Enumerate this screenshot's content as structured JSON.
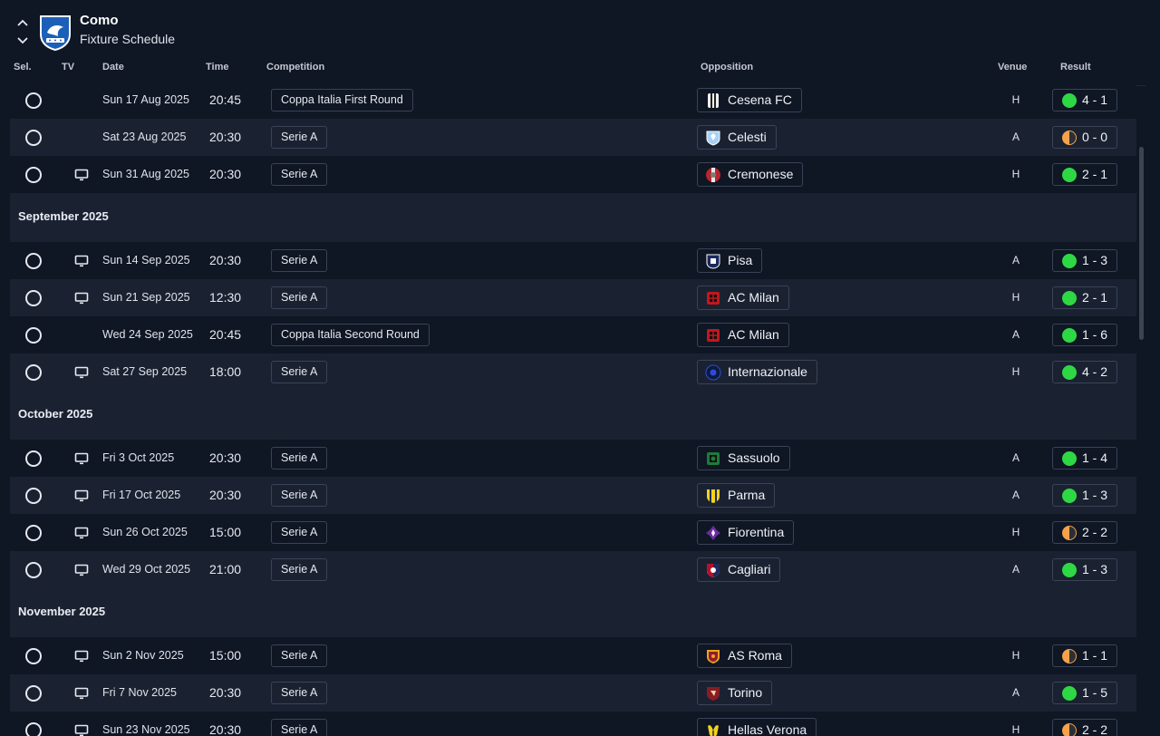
{
  "header": {
    "team": "Como",
    "subtitle": "Fixture Schedule"
  },
  "columns": {
    "sel": "Sel.",
    "tv": "TV",
    "date": "Date",
    "time": "Time",
    "competition": "Competition",
    "opposition": "Opposition",
    "venue": "Venue",
    "result": "Result"
  },
  "colors": {
    "win": "#2ed844",
    "draw": "#f5a24a",
    "background": "#0f1624",
    "row_alt": "#1a2232"
  },
  "fixtures": [
    {
      "kind": "row",
      "tv": false,
      "date": "Sun 17 Aug 2025",
      "time": "20:45",
      "competition": "Coppa Italia First Round",
      "opponent": "Cesena FC",
      "venue": "H",
      "result": "4 - 1",
      "outcome": "win",
      "crest": "cesena"
    },
    {
      "kind": "row",
      "tv": false,
      "date": "Sat 23 Aug 2025",
      "time": "20:30",
      "competition": "Serie A",
      "opponent": "Celesti",
      "venue": "A",
      "result": "0 - 0",
      "outcome": "draw",
      "crest": "celesti"
    },
    {
      "kind": "row",
      "tv": true,
      "date": "Sun 31 Aug 2025",
      "time": "20:30",
      "competition": "Serie A",
      "opponent": "Cremonese",
      "venue": "H",
      "result": "2 - 1",
      "outcome": "win",
      "crest": "cremonese"
    },
    {
      "kind": "month",
      "label": "September 2025"
    },
    {
      "kind": "row",
      "tv": true,
      "date": "Sun 14 Sep 2025",
      "time": "20:30",
      "competition": "Serie A",
      "opponent": "Pisa",
      "venue": "A",
      "result": "1 - 3",
      "outcome": "win",
      "crest": "pisa"
    },
    {
      "kind": "row",
      "tv": true,
      "date": "Sun 21 Sep 2025",
      "time": "12:30",
      "competition": "Serie A",
      "opponent": "AC Milan",
      "venue": "H",
      "result": "2 - 1",
      "outcome": "win",
      "crest": "milan"
    },
    {
      "kind": "row",
      "tv": false,
      "date": "Wed 24 Sep 2025",
      "time": "20:45",
      "competition": "Coppa Italia Second Round",
      "opponent": "AC Milan",
      "venue": "A",
      "result": "1 - 6",
      "outcome": "win",
      "crest": "milan"
    },
    {
      "kind": "row",
      "tv": true,
      "date": "Sat 27 Sep 2025",
      "time": "18:00",
      "competition": "Serie A",
      "opponent": "Internazionale",
      "venue": "H",
      "result": "4 - 2",
      "outcome": "win",
      "crest": "inter"
    },
    {
      "kind": "month",
      "label": "October 2025"
    },
    {
      "kind": "row",
      "tv": true,
      "date": "Fri 3 Oct 2025",
      "time": "20:30",
      "competition": "Serie A",
      "opponent": "Sassuolo",
      "venue": "A",
      "result": "1 - 4",
      "outcome": "win",
      "crest": "sassuolo"
    },
    {
      "kind": "row",
      "tv": true,
      "date": "Fri 17 Oct 2025",
      "time": "20:30",
      "competition": "Serie A",
      "opponent": "Parma",
      "venue": "A",
      "result": "1 - 3",
      "outcome": "win",
      "crest": "parma"
    },
    {
      "kind": "row",
      "tv": true,
      "date": "Sun 26 Oct 2025",
      "time": "15:00",
      "competition": "Serie A",
      "opponent": "Fiorentina",
      "venue": "H",
      "result": "2 - 2",
      "outcome": "draw",
      "crest": "fiorentina"
    },
    {
      "kind": "row",
      "tv": true,
      "date": "Wed 29 Oct 2025",
      "time": "21:00",
      "competition": "Serie A",
      "opponent": "Cagliari",
      "venue": "A",
      "result": "1 - 3",
      "outcome": "win",
      "crest": "cagliari"
    },
    {
      "kind": "month",
      "label": "November 2025"
    },
    {
      "kind": "row",
      "tv": true,
      "date": "Sun 2 Nov 2025",
      "time": "15:00",
      "competition": "Serie A",
      "opponent": "AS Roma",
      "venue": "H",
      "result": "1 - 1",
      "outcome": "draw",
      "crest": "roma"
    },
    {
      "kind": "row",
      "tv": true,
      "date": "Fri 7 Nov 2025",
      "time": "20:30",
      "competition": "Serie A",
      "opponent": "Torino",
      "venue": "A",
      "result": "1 - 5",
      "outcome": "win",
      "crest": "torino"
    },
    {
      "kind": "row",
      "tv": true,
      "date": "Sun 23 Nov 2025",
      "time": "20:30",
      "competition": "Serie A",
      "opponent": "Hellas Verona",
      "venue": "H",
      "result": "2 - 2",
      "outcome": "draw",
      "crest": "verona"
    }
  ]
}
